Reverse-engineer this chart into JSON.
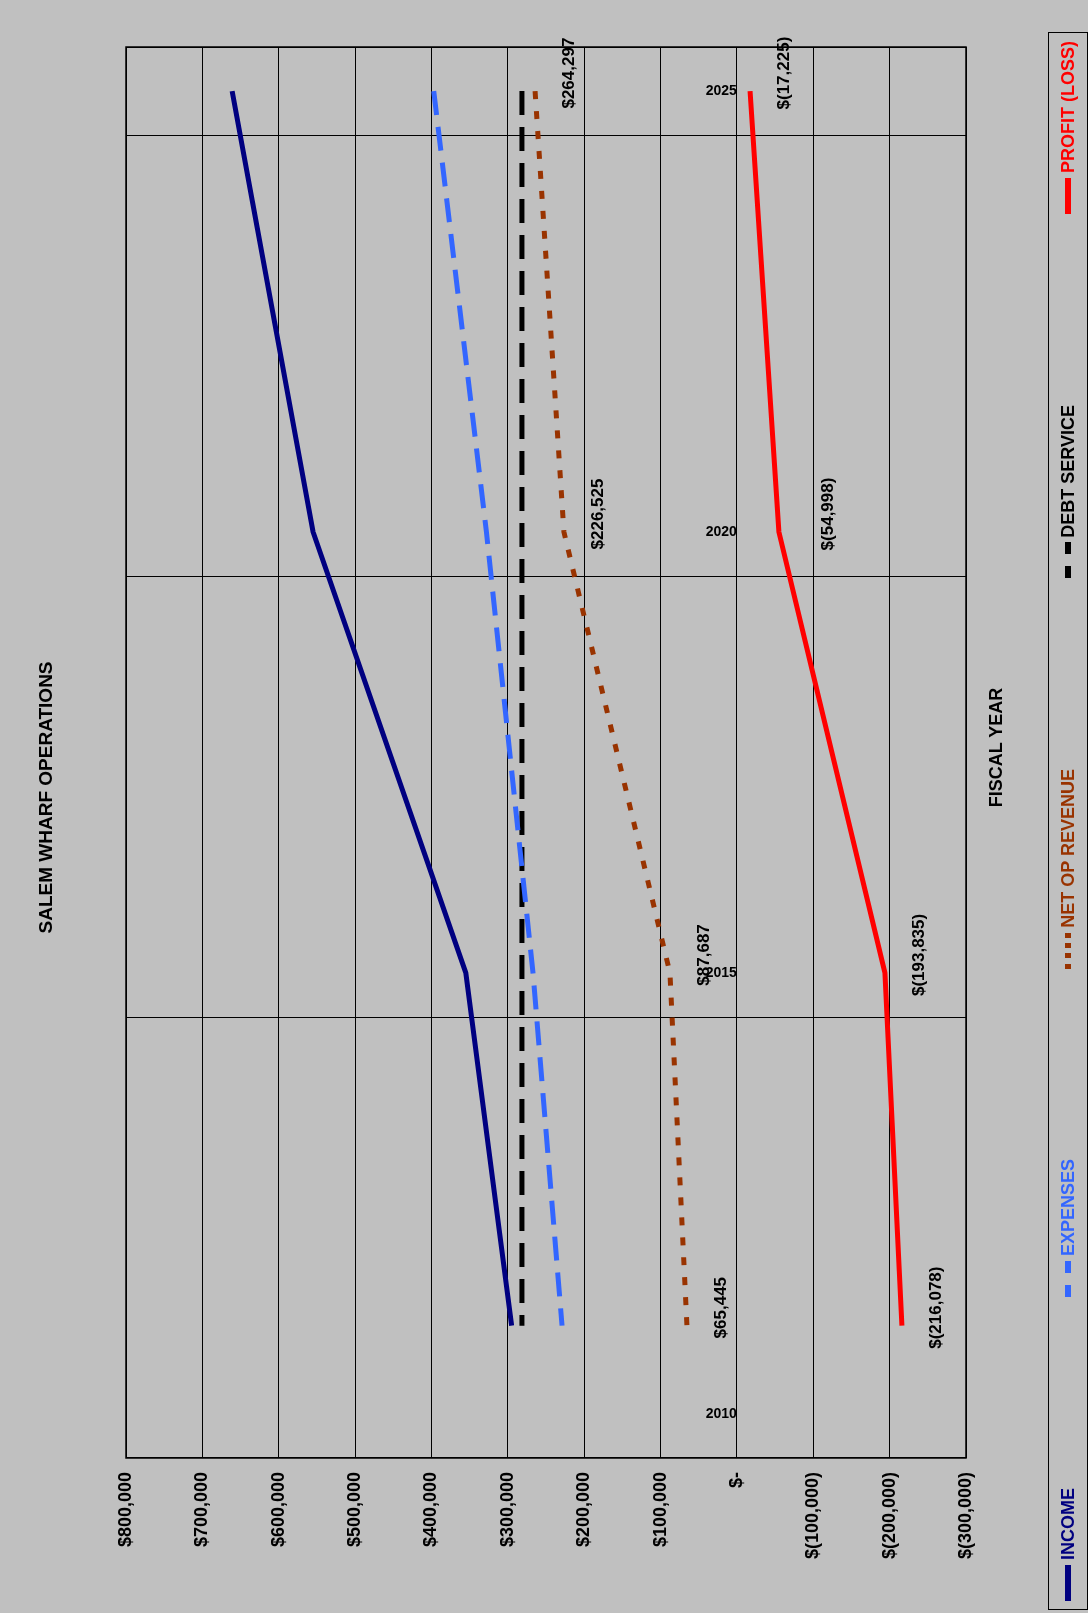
{
  "chart_data": {
    "type": "line",
    "title": "SALEM WHARF OPERATIONS",
    "ylabel": "FISCAL YEAR",
    "orientation": "horizontal",
    "categories": [
      "2025",
      null,
      null,
      null,
      null,
      "2020",
      null,
      null,
      null,
      null,
      "2015",
      null,
      null,
      null,
      null,
      "2010"
    ],
    "series": [
      {
        "name": "INCOME",
        "color": "#000080",
        "line_style": "solid",
        "values": [
          661000,
          null,
          null,
          null,
          null,
          555000,
          null,
          null,
          null,
          null,
          355000,
          null,
          null,
          null,
          295000,
          null
        ]
      },
      {
        "name": "EXPENSES",
        "color": "#3366ff",
        "line_style": "dashed",
        "values": [
          397000,
          null,
          null,
          null,
          null,
          328000,
          null,
          null,
          null,
          null,
          267000,
          null,
          null,
          null,
          229000,
          null
        ]
      },
      {
        "name": "NET OP REVENUE",
        "color": "#993300",
        "line_style": "dotted",
        "values": [
          264297,
          null,
          null,
          null,
          null,
          226525,
          null,
          null,
          null,
          null,
          87687,
          null,
          null,
          null,
          65445,
          null
        ],
        "value_labels": [
          "$264,297",
          null,
          null,
          null,
          null,
          "$226,525",
          null,
          null,
          null,
          null,
          "$87,687",
          null,
          null,
          null,
          "$65,445",
          null
        ]
      },
      {
        "name": "DEBT SERVICE",
        "color": "#000000",
        "line_style": "dashed",
        "values": [
          281500,
          null,
          null,
          null,
          null,
          281500,
          null,
          null,
          null,
          null,
          281500,
          null,
          null,
          null,
          281500,
          null
        ]
      },
      {
        "name": "PROFIT (LOSS)",
        "color": "#ff0000",
        "line_style": "solid",
        "values": [
          -17225,
          null,
          null,
          null,
          null,
          -54998,
          null,
          null,
          null,
          null,
          -193835,
          null,
          null,
          null,
          -216078,
          null
        ],
        "value_labels": [
          "$(17,225)",
          null,
          null,
          null,
          null,
          "$(54,998)",
          null,
          null,
          null,
          null,
          "$(193,835)",
          null,
          null,
          null,
          "$(216,078)",
          null
        ]
      }
    ],
    "xlim": [
      800000,
      -300000
    ],
    "xticks": [
      {
        "value": 800000,
        "label": "$800,000"
      },
      {
        "value": 700000,
        "label": "$700,000"
      },
      {
        "value": 600000,
        "label": "$600,000"
      },
      {
        "value": 500000,
        "label": "$500,000"
      },
      {
        "value": 400000,
        "label": "$400,000"
      },
      {
        "value": 300000,
        "label": "$300,000"
      },
      {
        "value": 200000,
        "label": "$200,000"
      },
      {
        "value": 100000,
        "label": "$100,000"
      },
      {
        "value": 0,
        "label": "$-"
      },
      {
        "value": -100000,
        "label": "$(100,000)"
      },
      {
        "value": -200000,
        "label": "$(200,000)"
      },
      {
        "value": -300000,
        "label": "$(300,000)"
      }
    ],
    "grid": true,
    "legend": "right"
  }
}
